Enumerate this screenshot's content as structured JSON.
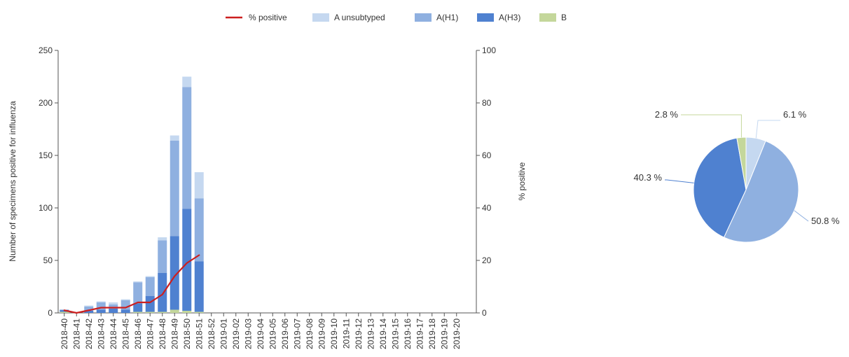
{
  "chart_data": [
    {
      "type": "bar",
      "stacked": true,
      "categories": [
        "2018-40",
        "2018-41",
        "2018-42",
        "2018-43",
        "2018-44",
        "2018-45",
        "2018-46",
        "2018-47",
        "2018-48",
        "2018-49",
        "2018-50",
        "2018-51",
        "2018-52",
        "2019-01",
        "2019-02",
        "2019-03",
        "2019-04",
        "2019-05",
        "2019-06",
        "2019-07",
        "2019-08",
        "2019-09",
        "2019-10",
        "2019-11",
        "2019-12",
        "2019-13",
        "2019-14",
        "2019-15",
        "2019-16",
        "2019-17",
        "2019-18",
        "2019-19",
        "2019-20"
      ],
      "series": [
        {
          "name": "B",
          "color": "#c4d79b",
          "values": [
            1,
            0,
            0,
            0,
            0,
            0,
            1,
            1,
            1,
            3,
            2,
            1,
            null,
            null,
            null,
            null,
            null,
            null,
            null,
            null,
            null,
            null,
            null,
            null,
            null,
            null,
            null,
            null,
            null,
            null,
            null,
            null,
            null
          ]
        },
        {
          "name": "A(H3)",
          "color": "#4f81d0",
          "values": [
            2,
            0,
            2,
            3,
            4,
            3,
            8,
            15,
            37,
            70,
            97,
            48,
            null,
            null,
            null,
            null,
            null,
            null,
            null,
            null,
            null,
            null,
            null,
            null,
            null,
            null,
            null,
            null,
            null,
            null,
            null,
            null,
            null
          ]
        },
        {
          "name": "A(H1)",
          "color": "#8fb0e0",
          "values": [
            0,
            0,
            4,
            7,
            4,
            9,
            20,
            18,
            31,
            91,
            116,
            60,
            null,
            null,
            null,
            null,
            null,
            null,
            null,
            null,
            null,
            null,
            null,
            null,
            null,
            null,
            null,
            null,
            null,
            null,
            null,
            null,
            null
          ]
        },
        {
          "name": "A unsubtyped",
          "color": "#c5d8f0",
          "values": [
            0,
            0,
            1,
            1,
            2,
            1,
            1,
            1,
            3,
            5,
            10,
            25,
            null,
            null,
            null,
            null,
            null,
            null,
            null,
            null,
            null,
            null,
            null,
            null,
            null,
            null,
            null,
            null,
            null,
            null,
            null,
            null,
            null
          ]
        }
      ],
      "line_series": {
        "name": "% positive",
        "color": "#cc1f1f",
        "values": [
          1,
          0,
          1,
          2,
          2,
          2,
          4,
          4,
          7,
          14,
          19,
          22,
          null,
          null,
          null,
          null,
          null,
          null,
          null,
          null,
          null,
          null,
          null,
          null,
          null,
          null,
          null,
          null,
          null,
          null,
          null,
          null,
          null
        ]
      },
      "ylabel": "Number of specimens positive for influenza",
      "ylim": [
        0,
        250
      ],
      "yticks": [
        "0",
        "50",
        "100",
        "150",
        "200",
        "250"
      ],
      "y2label": "% positive",
      "y2lim": [
        0,
        100
      ],
      "y2ticks": [
        "0",
        "20",
        "40",
        "60",
        "80",
        "100"
      ],
      "legend_position": "top",
      "legend": [
        "% positive",
        "A unsubtyped",
        "A(H1)",
        "A(H3)",
        "B"
      ]
    },
    {
      "type": "pie",
      "slices": [
        {
          "name": "A unsubtyped",
          "value": 6.1,
          "label": "6.1 %",
          "color": "#c5d8f0"
        },
        {
          "name": "A(H1)",
          "value": 50.8,
          "label": "50.8 %",
          "color": "#8fb0e0"
        },
        {
          "name": "A(H3)",
          "value": 40.3,
          "label": "40.3 %",
          "color": "#4f81d0"
        },
        {
          "name": "B",
          "value": 2.8,
          "label": "2.8 %",
          "color": "#c4d79b"
        }
      ]
    }
  ]
}
